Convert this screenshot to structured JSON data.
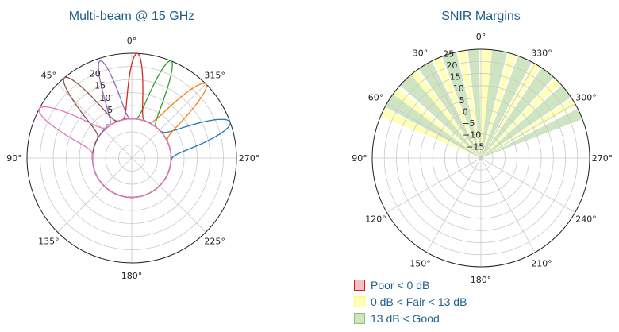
{
  "chart_data": [
    {
      "type": "polar-line",
      "title": "Multi-beam @ 15 GHz",
      "theta_direction": "counterclockwise",
      "theta_zero": "top",
      "theta_ticks": [
        "0°",
        "45°",
        "90°",
        "135°",
        "180°",
        "225°",
        "270°",
        "315°"
      ],
      "r_ticks": [
        "5",
        "10",
        "15",
        "20"
      ],
      "rlim": [
        -15,
        25
      ],
      "grid": true,
      "series": [
        {
          "color": "#1f77b4",
          "beam_angle_deg": -70,
          "peak": 25,
          "width_deg": 7
        },
        {
          "color": "#ff7f0e",
          "beam_angle_deg": -45,
          "peak": 25,
          "width_deg": 6
        },
        {
          "color": "#2ca02c",
          "beam_angle_deg": -22,
          "peak": 25,
          "width_deg": 5
        },
        {
          "color": "#d62728",
          "beam_angle_deg": -3,
          "peak": 25,
          "width_deg": 5
        },
        {
          "color": "#9467bd",
          "beam_angle_deg": 18,
          "peak": 24,
          "width_deg": 5
        },
        {
          "color": "#8c564b",
          "beam_angle_deg": 40,
          "peak": 25,
          "width_deg": 6
        },
        {
          "color": "#e377c2",
          "beam_angle_deg": 62,
          "peak": 25,
          "width_deg": 7
        }
      ]
    },
    {
      "type": "polar-bar",
      "title": "SNIR Margins",
      "theta_direction": "counterclockwise",
      "theta_zero": "top",
      "theta_ticks": [
        "0°",
        "30°",
        "60°",
        "90°",
        "120°",
        "150°",
        "180°",
        "210°",
        "240°",
        "270°",
        "300°",
        "330°"
      ],
      "r_ticks": [
        "−15",
        "−10",
        "−5",
        "0",
        "5",
        "10",
        "15",
        "20",
        "25"
      ],
      "rlim": [
        -20,
        25
      ],
      "grid": true,
      "sectors": [
        {
          "angle_deg": 65,
          "width_deg": 5,
          "category": "fair"
        },
        {
          "angle_deg": 58,
          "width_deg": 8,
          "category": "good"
        },
        {
          "angle_deg": 52,
          "width_deg": 4,
          "category": "fair"
        },
        {
          "angle_deg": 44,
          "width_deg": 8,
          "category": "good"
        },
        {
          "angle_deg": 38,
          "width_deg": 4,
          "category": "fair"
        },
        {
          "angle_deg": 31,
          "width_deg": 8,
          "category": "good"
        },
        {
          "angle_deg": 24,
          "width_deg": 4,
          "category": "fair"
        },
        {
          "angle_deg": 17,
          "width_deg": 8,
          "category": "good"
        },
        {
          "angle_deg": 10,
          "width_deg": 4,
          "category": "fair"
        },
        {
          "angle_deg": 4,
          "width_deg": 6,
          "category": "good"
        },
        {
          "angle_deg": -3,
          "width_deg": 6,
          "category": "fair"
        },
        {
          "angle_deg": -10,
          "width_deg": 8,
          "category": "good"
        },
        {
          "angle_deg": -17,
          "width_deg": 4,
          "category": "fair"
        },
        {
          "angle_deg": -24,
          "width_deg": 8,
          "category": "good"
        },
        {
          "angle_deg": -31,
          "width_deg": 4,
          "category": "fair"
        },
        {
          "angle_deg": -38,
          "width_deg": 8,
          "category": "good"
        },
        {
          "angle_deg": -45,
          "width_deg": 4,
          "category": "fair"
        },
        {
          "angle_deg": -52,
          "width_deg": 8,
          "category": "good"
        },
        {
          "angle_deg": -59,
          "width_deg": 4,
          "category": "fair"
        },
        {
          "angle_deg": -66,
          "width_deg": 6,
          "category": "good"
        }
      ],
      "legend": [
        {
          "label": "Poor < 0 dB",
          "fill": "#f4c2c2",
          "edge": "#cc2222"
        },
        {
          "label": "0 dB < Fair < 13 dB",
          "fill": "#ffffb8",
          "edge": "#ffff66"
        },
        {
          "label": "13 dB < Good",
          "fill": "#cfe5c2",
          "edge": "#8dc07a"
        }
      ],
      "legend_position": "bottom-left"
    }
  ]
}
